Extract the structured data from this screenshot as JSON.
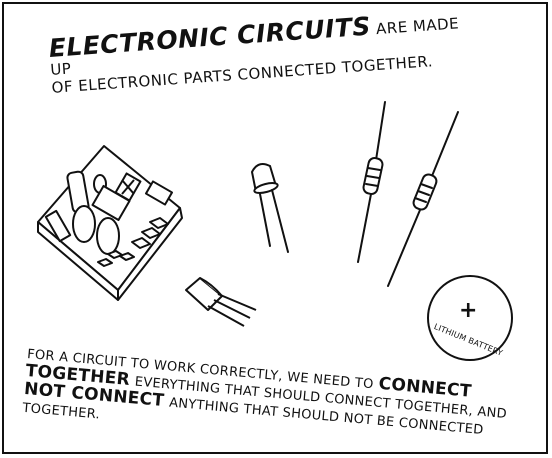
{
  "title": {
    "emphasis": "ELECTRONIC CIRCUITS",
    "rest_line1": "ARE MADE UP",
    "line2": "OF ELECTRONIC PARTS CONNECTED TOGETHER."
  },
  "caption": {
    "part1": "FOR A CIRCUIT TO WORK CORRECTLY, WE NEED TO",
    "emph1": "CONNECT TOGETHER",
    "part2": "EVERYTHING THAT SHOULD CONNECT TOGETHER, AND",
    "emph2": "NOT CONNECT",
    "part3": "ANYTHING THAT SHOULD NOT BE CONNECTED TOGETHER."
  },
  "battery": {
    "label": "LITHIUM BATTERY",
    "symbol": "+"
  },
  "icons": [
    "circuit-board-icon",
    "led-icon",
    "resistor-icon",
    "transistor-icon",
    "coin-battery-icon"
  ]
}
